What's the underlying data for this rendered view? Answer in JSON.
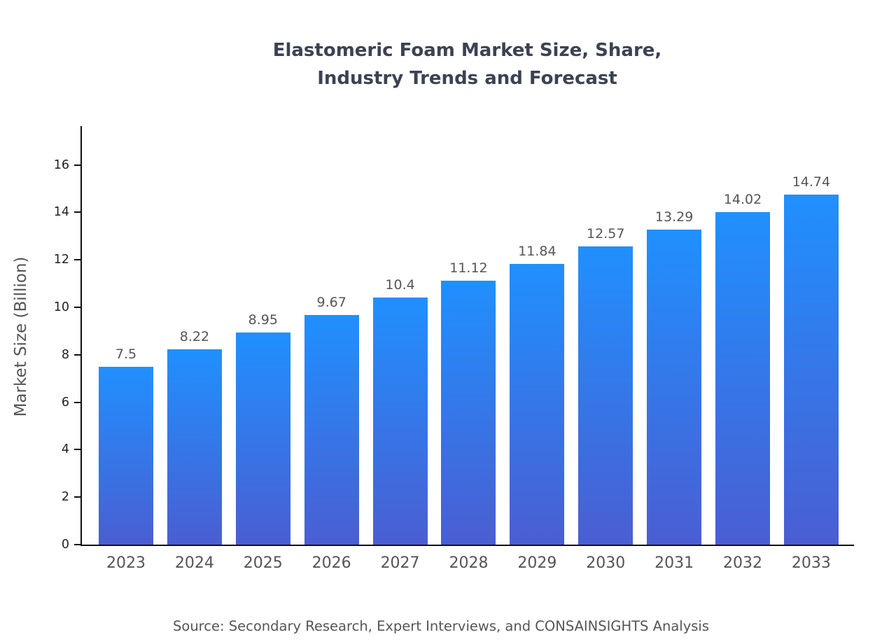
{
  "title": {
    "line1": "Elastomeric Foam Market Size, Share,",
    "line2": "Industry Trends and Forecast"
  },
  "source": "Source: Secondary Research, Expert Interviews, and CONSAINSIGHTS Analysis",
  "chart_data": {
    "type": "bar",
    "title": "Elastomeric Foam Market Size, Share, Industry Trends and Forecast",
    "categories": [
      "2023",
      "2024",
      "2025",
      "2026",
      "2027",
      "2028",
      "2029",
      "2030",
      "2031",
      "2032",
      "2033"
    ],
    "values": [
      7.5,
      8.22,
      8.95,
      9.67,
      10.4,
      11.12,
      11.84,
      12.57,
      13.29,
      14.02,
      14.74
    ],
    "value_labels": [
      "7.5",
      "8.22",
      "8.95",
      "9.67",
      "10.4",
      "11.12",
      "11.84",
      "12.57",
      "13.29",
      "14.02",
      "14.74"
    ],
    "xlabel": "",
    "ylabel": "Market Size (Billion)",
    "ylim": [
      0,
      17.7
    ],
    "yticks": [
      0,
      2,
      4,
      6,
      8,
      10,
      12,
      14,
      16
    ],
    "grid": false,
    "legend": null,
    "colors": {
      "bar_gradient_top": "#2090fe",
      "bar_gradient_bottom": "#4a5ed2",
      "title_text": "#3b4252",
      "axis": "#111111",
      "label_text": "#555555"
    }
  }
}
